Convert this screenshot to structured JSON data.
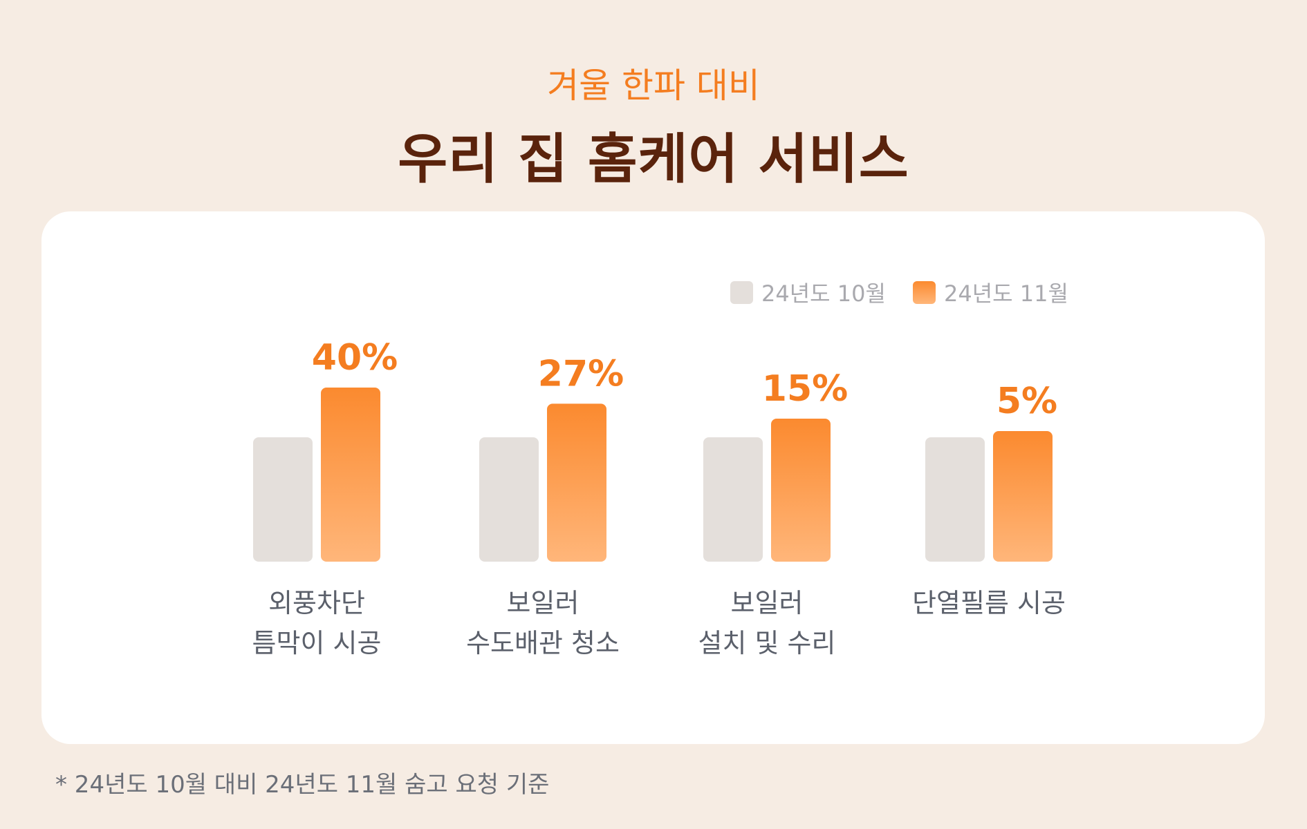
{
  "header": {
    "subtitle": "겨울 한파 대비",
    "title": "우리 집 홈케어 서비스"
  },
  "legend": [
    {
      "label": "24년도 10월",
      "color": "#e4dfdb"
    },
    {
      "label": "24년도 11월",
      "color": "#fb8a2f"
    }
  ],
  "chart_data": {
    "type": "bar",
    "categories": [
      [
        "외풍차단",
        "틈막이 시공"
      ],
      [
        "보일러",
        "수도배관 청소"
      ],
      [
        "보일러",
        "설치 및 수리"
      ],
      [
        "단열필름 시공"
      ]
    ],
    "series": [
      {
        "name": "24년도 10월",
        "values": [
          100,
          100,
          100,
          100
        ],
        "color": "#e4dfdb"
      },
      {
        "name": "24년도 11월",
        "values": [
          140,
          127,
          115,
          105
        ],
        "color": "#fb8a2f"
      }
    ],
    "data_labels": [
      "40%",
      "27%",
      "15%",
      "5%"
    ],
    "accent_color": "#f47d20",
    "gradient_bottom_color": "#ffb67a"
  },
  "footnote": "* 24년도 10월 대비 24년도 11월 숨고 요청 기준"
}
